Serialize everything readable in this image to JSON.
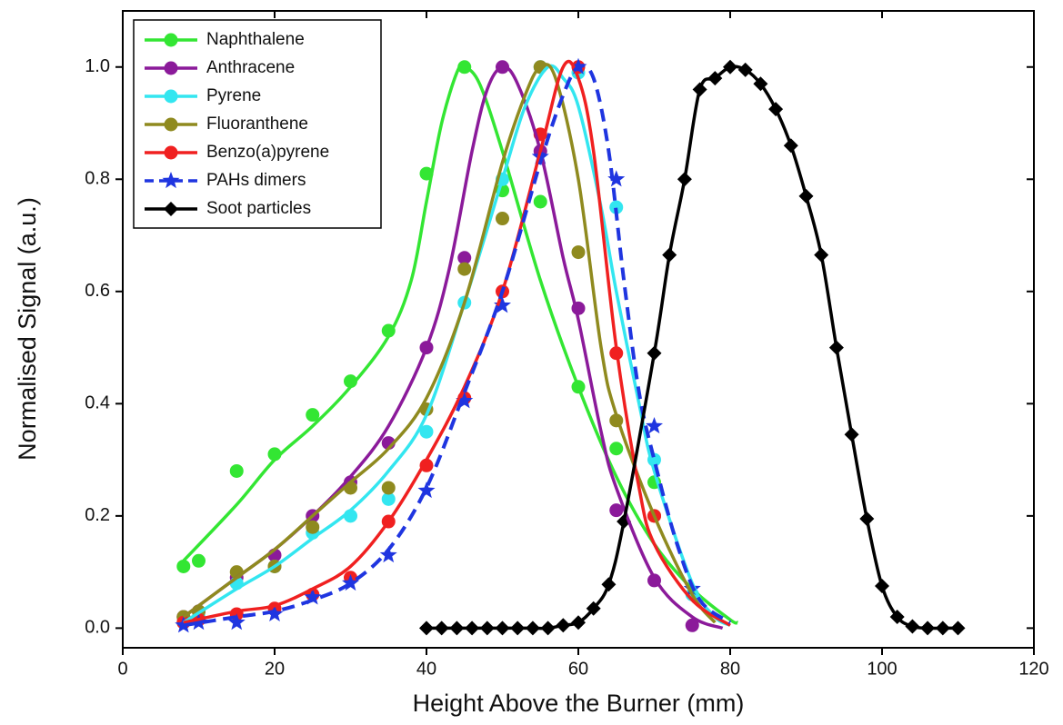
{
  "chart_data": {
    "type": "scatter",
    "x_label": "Height Above the Burner (mm)",
    "y_label": "Normalised Signal (a.u.)",
    "xlim": [
      0,
      120
    ],
    "ylim": [
      -0.035,
      1.1
    ],
    "xticks": [
      0,
      20,
      40,
      60,
      80,
      100,
      120
    ],
    "yticks": [
      {
        "value": 0,
        "label": "0.0"
      },
      0.2,
      0.4,
      0.6,
      0.8,
      {
        "value": 1,
        "label": "1.0"
      }
    ],
    "legend": "top-left",
    "series": [
      {
        "name": "Naphthalene",
        "color": "#33e633",
        "marker": "circle",
        "line_style": "solid",
        "x": [
          8,
          10,
          15,
          20,
          25,
          30,
          35,
          40,
          45,
          50,
          55,
          60,
          65,
          70
        ],
        "values": [
          0.11,
          0.12,
          0.28,
          0.31,
          0.38,
          0.44,
          0.53,
          0.81,
          1.0,
          0.78,
          0.76,
          0.43,
          0.32,
          0.26
        ],
        "fit": {
          "x": [
            8,
            15,
            20,
            25,
            30,
            35,
            38,
            40,
            42,
            44,
            45,
            47,
            50,
            55,
            60,
            65,
            70,
            75,
            80,
            81
          ],
          "values": [
            0.12,
            0.22,
            0.3,
            0.36,
            0.43,
            0.52,
            0.62,
            0.76,
            0.9,
            0.99,
            1.0,
            0.97,
            0.85,
            0.62,
            0.43,
            0.27,
            0.15,
            0.07,
            0.015,
            0.01
          ]
        }
      },
      {
        "name": "Anthracene",
        "color": "#8b1a9a",
        "marker": "circle",
        "line_style": "solid",
        "x": [
          8,
          10,
          15,
          20,
          25,
          30,
          35,
          40,
          45,
          50,
          55,
          60,
          65,
          70,
          75
        ],
        "values": [
          0.02,
          0.03,
          0.09,
          0.13,
          0.2,
          0.26,
          0.33,
          0.5,
          0.66,
          1.0,
          0.85,
          0.57,
          0.21,
          0.085,
          0.005
        ],
        "fit": {
          "x": [
            8,
            15,
            20,
            25,
            30,
            35,
            40,
            43,
            46,
            48,
            50,
            52,
            55,
            58,
            60,
            63,
            65,
            70,
            75,
            79
          ],
          "values": [
            0.02,
            0.09,
            0.14,
            0.2,
            0.27,
            0.36,
            0.5,
            0.64,
            0.85,
            0.96,
            1.0,
            0.97,
            0.85,
            0.66,
            0.55,
            0.35,
            0.25,
            0.09,
            0.02,
            0.0
          ]
        }
      },
      {
        "name": "Pyrene",
        "color": "#33e6f0",
        "marker": "circle",
        "line_style": "solid",
        "x": [
          8,
          10,
          15,
          20,
          25,
          30,
          35,
          40,
          45,
          50,
          55,
          60,
          65,
          70,
          75
        ],
        "values": [
          0.01,
          0.02,
          0.08,
          0.11,
          0.17,
          0.2,
          0.23,
          0.35,
          0.58,
          0.8,
          1.0,
          0.99,
          0.75,
          0.3,
          0.06
        ],
        "fit": {
          "x": [
            8,
            15,
            20,
            25,
            30,
            35,
            40,
            45,
            50,
            53,
            56,
            58,
            60,
            63,
            65,
            68,
            70,
            75,
            78,
            80
          ],
          "values": [
            0.01,
            0.07,
            0.11,
            0.16,
            0.21,
            0.28,
            0.38,
            0.58,
            0.8,
            0.93,
            1.0,
            0.98,
            0.93,
            0.75,
            0.6,
            0.4,
            0.28,
            0.08,
            0.02,
            0.005
          ]
        }
      },
      {
        "name": "Fluoranthene",
        "color": "#8f8a1f",
        "marker": "circle",
        "line_style": "solid",
        "x": [
          8,
          10,
          15,
          20,
          25,
          30,
          35,
          40,
          45,
          50,
          55,
          60,
          65,
          70
        ],
        "values": [
          0.02,
          0.03,
          0.1,
          0.11,
          0.18,
          0.25,
          0.25,
          0.39,
          0.64,
          0.73,
          1.0,
          0.67,
          0.37,
          0.2
        ],
        "fit": {
          "x": [
            8,
            15,
            20,
            25,
            30,
            35,
            40,
            45,
            50,
            53,
            55,
            57,
            60,
            63,
            65,
            70,
            75,
            78
          ],
          "values": [
            0.02,
            0.09,
            0.14,
            0.2,
            0.26,
            0.32,
            0.41,
            0.58,
            0.83,
            0.95,
            1.0,
            0.98,
            0.8,
            0.5,
            0.38,
            0.2,
            0.06,
            0.01
          ]
        }
      },
      {
        "name": "Benzo(a)pyrene",
        "color": "#f02020",
        "marker": "circle",
        "line_style": "solid",
        "x": [
          8,
          10,
          15,
          20,
          25,
          30,
          35,
          40,
          45,
          50,
          55,
          60,
          65,
          70
        ],
        "values": [
          0.01,
          0.015,
          0.025,
          0.035,
          0.06,
          0.09,
          0.19,
          0.29,
          0.41,
          0.6,
          0.88,
          1.0,
          0.49,
          0.2
        ],
        "fit": {
          "x": [
            8,
            15,
            20,
            25,
            30,
            35,
            40,
            45,
            50,
            55,
            58,
            60,
            62,
            65,
            68,
            70,
            75,
            80
          ],
          "values": [
            0.01,
            0.03,
            0.04,
            0.07,
            0.11,
            0.19,
            0.3,
            0.43,
            0.6,
            0.85,
            1.0,
            0.98,
            0.85,
            0.5,
            0.25,
            0.15,
            0.05,
            0.005
          ]
        }
      },
      {
        "name": "PAHs dimers",
        "color": "#1f35e0",
        "marker": "star",
        "line_style": "dash",
        "x": [
          8,
          10,
          15,
          20,
          25,
          30,
          35,
          40,
          45,
          50,
          55,
          60,
          65,
          70,
          75
        ],
        "values": [
          0.005,
          0.01,
          0.01,
          0.025,
          0.055,
          0.08,
          0.13,
          0.245,
          0.405,
          0.575,
          0.84,
          1.0,
          0.8,
          0.36,
          0.07
        ],
        "fit": {
          "x": [
            8,
            15,
            20,
            25,
            30,
            35,
            40,
            45,
            50,
            55,
            58,
            60,
            62,
            64,
            66,
            68,
            70,
            73,
            76,
            80
          ],
          "values": [
            0.005,
            0.02,
            0.03,
            0.05,
            0.08,
            0.14,
            0.25,
            0.42,
            0.6,
            0.83,
            0.95,
            1.0,
            0.98,
            0.85,
            0.62,
            0.42,
            0.3,
            0.15,
            0.05,
            0.01
          ]
        }
      },
      {
        "name": "Soot particles",
        "color": "#000000",
        "marker": "diamond",
        "line_style": "solid",
        "x": [
          40,
          42,
          44,
          46,
          48,
          50,
          52,
          54,
          56,
          58,
          60,
          62,
          64,
          66,
          70,
          72,
          74,
          76,
          78,
          80,
          82,
          84,
          86,
          88,
          90,
          92,
          94,
          96,
          98,
          100,
          102,
          104,
          106,
          108,
          110
        ],
        "values": [
          0,
          0,
          0,
          0,
          0,
          0,
          0,
          0,
          0,
          0.005,
          0.01,
          0.035,
          0.078,
          0.19,
          0.49,
          0.665,
          0.8,
          0.96,
          0.98,
          1.0,
          0.995,
          0.97,
          0.925,
          0.86,
          0.77,
          0.665,
          0.5,
          0.345,
          0.195,
          0.075,
          0.02,
          0.003,
          0,
          0,
          0
        ]
      }
    ]
  }
}
